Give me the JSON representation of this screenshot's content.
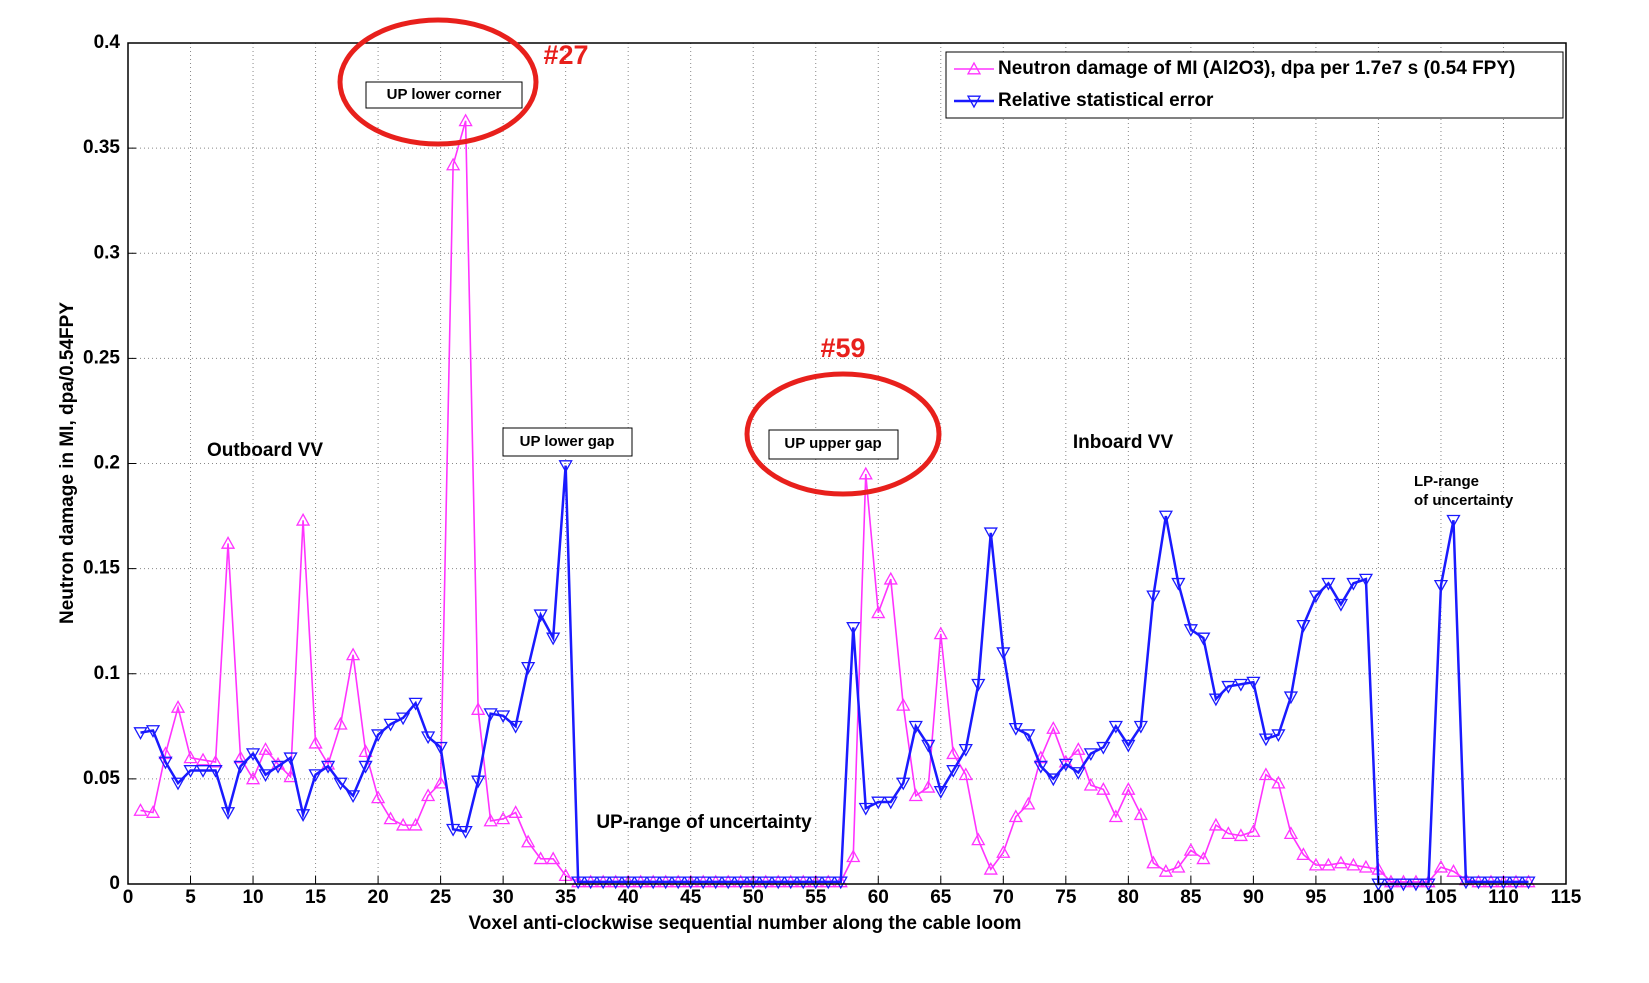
{
  "chart_data": {
    "type": "line",
    "xlabel": "Voxel anti-clockwise sequential number along the cable loom",
    "ylabel": "Neutron damage in MI, dpa/0.54FPY",
    "xlim": [
      0,
      115
    ],
    "ylim": [
      0,
      0.4
    ],
    "xticks": [
      0,
      5,
      10,
      15,
      20,
      25,
      30,
      35,
      40,
      45,
      50,
      55,
      60,
      65,
      70,
      75,
      80,
      85,
      90,
      95,
      100,
      105,
      110,
      115
    ],
    "yticks": [
      0,
      0.05,
      0.1,
      0.15,
      0.2,
      0.25,
      0.3,
      0.35,
      0.4
    ],
    "grid": true,
    "legend": "upper right",
    "x": [
      1,
      2,
      3,
      4,
      5,
      6,
      7,
      8,
      9,
      10,
      11,
      12,
      13,
      14,
      15,
      16,
      17,
      18,
      19,
      20,
      21,
      22,
      23,
      24,
      25,
      26,
      27,
      28,
      29,
      30,
      31,
      32,
      33,
      34,
      35,
      36,
      37,
      38,
      39,
      40,
      41,
      42,
      43,
      44,
      45,
      46,
      47,
      48,
      49,
      50,
      51,
      52,
      53,
      54,
      55,
      56,
      57,
      58,
      59,
      60,
      61,
      62,
      63,
      64,
      65,
      66,
      67,
      68,
      69,
      70,
      71,
      72,
      73,
      74,
      75,
      76,
      77,
      78,
      79,
      80,
      81,
      82,
      83,
      84,
      85,
      86,
      87,
      88,
      89,
      90,
      91,
      92,
      93,
      94,
      95,
      96,
      97,
      98,
      99,
      100,
      101,
      102,
      103,
      104,
      105,
      106,
      107,
      108,
      109,
      110,
      111,
      112
    ],
    "series": [
      {
        "name": "Neutron damage of MI (Al2O3), dpa per 1.7e7 s (0.54 FPY)",
        "color": "#ff33ff",
        "marker": "triangle-up",
        "values": [
          0.035,
          0.034,
          0.062,
          0.084,
          0.06,
          0.059,
          0.058,
          0.162,
          0.06,
          0.05,
          0.064,
          0.057,
          0.051,
          0.173,
          0.067,
          0.057,
          0.076,
          0.109,
          0.063,
          0.041,
          0.031,
          0.028,
          0.028,
          0.042,
          0.048,
          0.342,
          0.363,
          0.083,
          0.03,
          0.031,
          0.034,
          0.02,
          0.012,
          0.012,
          0.004,
          0.001,
          0.001,
          0.001,
          0.001,
          0.001,
          0.001,
          0.001,
          0.001,
          0.001,
          0.001,
          0.001,
          0.001,
          0.001,
          0.001,
          0.001,
          0.001,
          0.001,
          0.001,
          0.001,
          0.001,
          0.001,
          0.001,
          0.013,
          0.195,
          0.129,
          0.145,
          0.085,
          0.042,
          0.046,
          0.119,
          0.062,
          0.052,
          0.021,
          0.007,
          0.015,
          0.032,
          0.038,
          0.06,
          0.074,
          0.058,
          0.064,
          0.047,
          0.045,
          0.032,
          0.045,
          0.033,
          0.01,
          0.006,
          0.008,
          0.016,
          0.012,
          0.028,
          0.024,
          0.023,
          0.025,
          0.052,
          0.048,
          0.024,
          0.014,
          0.009,
          0.009,
          0.01,
          0.009,
          0.008,
          0.007,
          0.001,
          0.001,
          0.001,
          0.001,
          0.008,
          0.006,
          0.002,
          0.001,
          0.001,
          0.001,
          0.001,
          0.001
        ]
      },
      {
        "name": "Relative statistical error",
        "color": "#1a1aff",
        "marker": "triangle-down",
        "values": [
          0.072,
          0.073,
          0.058,
          0.048,
          0.054,
          0.054,
          0.054,
          0.034,
          0.056,
          0.062,
          0.052,
          0.056,
          0.06,
          0.033,
          0.052,
          0.056,
          0.048,
          0.042,
          0.056,
          0.071,
          0.076,
          0.079,
          0.086,
          0.07,
          0.065,
          0.026,
          0.025,
          0.049,
          0.081,
          0.08,
          0.075,
          0.103,
          0.128,
          0.117,
          0.199,
          0.001,
          0.001,
          0.001,
          0.001,
          0.001,
          0.001,
          0.001,
          0.001,
          0.001,
          0.001,
          0.001,
          0.001,
          0.001,
          0.001,
          0.001,
          0.001,
          0.001,
          0.001,
          0.001,
          0.001,
          0.001,
          0.001,
          0.122,
          0.036,
          0.039,
          0.039,
          0.048,
          0.075,
          0.066,
          0.044,
          0.054,
          0.064,
          0.095,
          0.167,
          0.11,
          0.074,
          0.071,
          0.056,
          0.05,
          0.057,
          0.053,
          0.062,
          0.065,
          0.075,
          0.066,
          0.075,
          0.137,
          0.175,
          0.143,
          0.121,
          0.117,
          0.088,
          0.094,
          0.095,
          0.096,
          0.069,
          0.071,
          0.089,
          0.123,
          0.137,
          0.143,
          0.133,
          0.143,
          0.145,
          0,
          0,
          0,
          0,
          0,
          0.142,
          0.173,
          0.001,
          0.001,
          0.001,
          0.001,
          0.001,
          0.001
        ]
      }
    ],
    "annotations": [
      {
        "text": "UP lower corner"
      },
      {
        "text": "#27"
      },
      {
        "text": "UP lower gap"
      },
      {
        "text": "UP upper gap"
      },
      {
        "text": "#59"
      },
      {
        "text": "Outboard VV"
      },
      {
        "text": "Inboard VV"
      },
      {
        "text": "UP-range of uncertainty"
      },
      {
        "text": "LP-range"
      },
      {
        "text": "of uncertainty"
      }
    ]
  }
}
